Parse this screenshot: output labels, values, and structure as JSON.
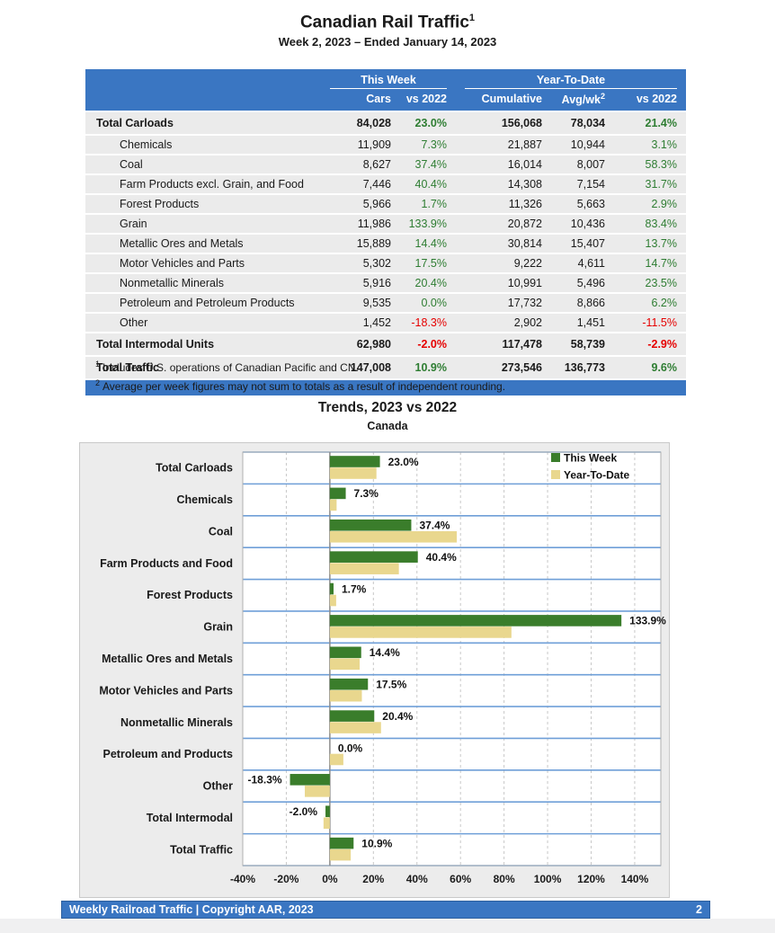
{
  "page": {
    "title": "Canadian Rail Traffic",
    "title_superscript": "1",
    "subtitle": "Week 2, 2023 – Ended January 14, 2023",
    "footer": {
      "left": "Weekly Railroad Traffic | Copyright AAR, 2023",
      "page_number": "2"
    }
  },
  "table": {
    "group_headers": {
      "this_week": "This Week",
      "year_to_date": "Year-To-Date"
    },
    "columns": [
      "Cars",
      "vs 2022",
      "Cumulative",
      "Avg/wk",
      "vs 2022"
    ],
    "avgwk_superscript": "2",
    "rows": [
      {
        "label": "Total Carloads",
        "bold": true,
        "cars": "84,028",
        "wk_vs": "23.0%",
        "cumulative": "156,068",
        "avg_wk": "78,034",
        "ytd_vs": "21.4%"
      },
      {
        "label": "Chemicals",
        "bold": false,
        "cars": "11,909",
        "wk_vs": "7.3%",
        "cumulative": "21,887",
        "avg_wk": "10,944",
        "ytd_vs": "3.1%"
      },
      {
        "label": "Coal",
        "bold": false,
        "cars": "8,627",
        "wk_vs": "37.4%",
        "cumulative": "16,014",
        "avg_wk": "8,007",
        "ytd_vs": "58.3%"
      },
      {
        "label": "Farm Products excl. Grain, and Food",
        "bold": false,
        "cars": "7,446",
        "wk_vs": "40.4%",
        "cumulative": "14,308",
        "avg_wk": "7,154",
        "ytd_vs": "31.7%"
      },
      {
        "label": "Forest Products",
        "bold": false,
        "cars": "5,966",
        "wk_vs": "1.7%",
        "cumulative": "11,326",
        "avg_wk": "5,663",
        "ytd_vs": "2.9%"
      },
      {
        "label": "Grain",
        "bold": false,
        "cars": "11,986",
        "wk_vs": "133.9%",
        "cumulative": "20,872",
        "avg_wk": "10,436",
        "ytd_vs": "83.4%"
      },
      {
        "label": "Metallic Ores and Metals",
        "bold": false,
        "cars": "15,889",
        "wk_vs": "14.4%",
        "cumulative": "30,814",
        "avg_wk": "15,407",
        "ytd_vs": "13.7%"
      },
      {
        "label": "Motor Vehicles and Parts",
        "bold": false,
        "cars": "5,302",
        "wk_vs": "17.5%",
        "cumulative": "9,222",
        "avg_wk": "4,611",
        "ytd_vs": "14.7%"
      },
      {
        "label": "Nonmetallic Minerals",
        "bold": false,
        "cars": "5,916",
        "wk_vs": "20.4%",
        "cumulative": "10,991",
        "avg_wk": "5,496",
        "ytd_vs": "23.5%"
      },
      {
        "label": "Petroleum and Petroleum Products",
        "bold": false,
        "cars": "9,535",
        "wk_vs": "0.0%",
        "cumulative": "17,732",
        "avg_wk": "8,866",
        "ytd_vs": "6.2%"
      },
      {
        "label": "Other",
        "bold": false,
        "cars": "1,452",
        "wk_vs": "-18.3%",
        "cumulative": "2,902",
        "avg_wk": "1,451",
        "ytd_vs": "-11.5%"
      },
      {
        "label": "Total Intermodal Units",
        "bold": true,
        "cars": "62,980",
        "wk_vs": "-2.0%",
        "cumulative": "117,478",
        "avg_wk": "58,739",
        "ytd_vs": "-2.9%"
      },
      {
        "label": "Total Traffic",
        "bold": true,
        "cars": "147,008",
        "wk_vs": "10.9%",
        "cumulative": "273,546",
        "avg_wk": "136,773",
        "ytd_vs": "9.6%"
      }
    ]
  },
  "footnotes": [
    {
      "sup": "1",
      "text": "Includes U.S. operations of Canadian Pacific and CN."
    },
    {
      "sup": "2",
      "text": "Average per week figures may not sum to totals as a result of independent rounding."
    }
  ],
  "chart_data": {
    "type": "bar",
    "orientation": "horizontal",
    "title": "Trends, 2023 vs 2022",
    "subtitle": "Canada",
    "categories": [
      "Total Carloads",
      "Chemicals",
      "Coal",
      "Farm Products and Food",
      "Forest Products",
      "Grain",
      "Metallic Ores and Metals",
      "Motor Vehicles and Parts",
      "Nonmetallic Minerals",
      "Petroleum and Products",
      "Other",
      "Total Intermodal",
      "Total Traffic"
    ],
    "series": [
      {
        "name": "This Week",
        "color": "#3a7d2b",
        "values": [
          23.0,
          7.3,
          37.4,
          40.4,
          1.7,
          133.9,
          14.4,
          17.5,
          20.4,
          0.0,
          -18.3,
          -2.0,
          10.9
        ]
      },
      {
        "name": "Year-To-Date",
        "color": "#e9d78e",
        "values": [
          21.4,
          3.1,
          58.3,
          31.7,
          2.9,
          83.4,
          13.7,
          14.7,
          23.5,
          6.2,
          -11.5,
          -2.9,
          9.6
        ]
      }
    ],
    "data_labels": [
      "23.0%",
      "7.3%",
      "37.4%",
      "40.4%",
      "1.7%",
      "133.9%",
      "14.4%",
      "17.5%",
      "20.4%",
      "0.0%",
      "-18.3%",
      "-2.0%",
      "10.9%"
    ],
    "xlim": [
      -40,
      152
    ],
    "ticks": [
      -40,
      -20,
      0,
      20,
      40,
      60,
      80,
      100,
      120,
      140
    ],
    "tick_labels": [
      "-40%",
      "-20%",
      "0%",
      "20%",
      "40%",
      "60%",
      "80%",
      "100%",
      "120%",
      "140%"
    ],
    "grid": "dashed-vertical",
    "legend_position": "top-right"
  },
  "colors": {
    "header_blue": "#3a76c2",
    "row_gray": "#ebebeb",
    "positive_green": "#2e7d32",
    "negative_red": "#e60000",
    "bar_green": "#3a7d2b",
    "bar_tan": "#e9d78e",
    "band_line_blue": "#6f9fd8",
    "zero_line": "#8c8c8c",
    "grid_dash": "#c8c8c8",
    "plot_border": "#b0b0b0"
  }
}
